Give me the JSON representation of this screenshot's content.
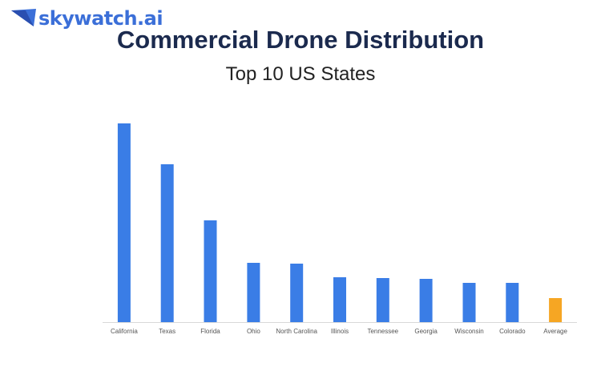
{
  "brand": {
    "name": "skywatch.ai",
    "icon": "wing-logo-icon"
  },
  "chart_data": {
    "type": "bar",
    "title": "Commercial Drone Distribution",
    "subtitle": "Top 10 US States",
    "xlabel": "",
    "ylabel": "",
    "categories": [
      "California",
      "Texas",
      "Florida",
      "Ohio",
      "North Carolina",
      "Illinois",
      "Tennessee",
      "Georgia",
      "Wisconsin",
      "Colorado",
      "Average"
    ],
    "values": [
      248,
      197,
      127,
      74,
      73,
      56,
      55,
      54,
      49,
      49,
      30
    ],
    "value_units": "relative (no axis shown)",
    "ylim": [
      0,
      260
    ],
    "grid": false,
    "legend": "none",
    "colors": {
      "bar": "#3a7de6",
      "average": "#f6a623",
      "baseline": "#d9d9d9"
    }
  }
}
